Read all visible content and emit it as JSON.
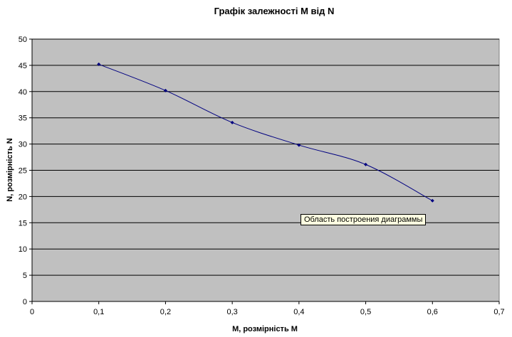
{
  "tooltip": "Область построения диаграммы",
  "chart_data": {
    "type": "line",
    "title": "Графік залежності М від N",
    "xlabel": "M, розмірність M",
    "ylabel": "N, розмірність N",
    "xlim": [
      0,
      0.7
    ],
    "ylim": [
      0,
      50
    ],
    "x_ticks": [
      "0",
      "0,1",
      "0,2",
      "0,3",
      "0,4",
      "0,5",
      "0,6",
      "0,7"
    ],
    "y_ticks": [
      "0",
      "5",
      "10",
      "15",
      "20",
      "25",
      "30",
      "35",
      "40",
      "45",
      "50"
    ],
    "grid": true,
    "legend": "none",
    "colors": {
      "line": "#000080",
      "plot_bg": "#c0c0c0",
      "grid": "#000000"
    },
    "series": [
      {
        "x": [
          0.1,
          0.2,
          0.3,
          0.4,
          0.5,
          0.6
        ],
        "y": [
          45.2,
          40.2,
          34.1,
          29.8,
          26.1,
          19.2
        ]
      }
    ]
  }
}
